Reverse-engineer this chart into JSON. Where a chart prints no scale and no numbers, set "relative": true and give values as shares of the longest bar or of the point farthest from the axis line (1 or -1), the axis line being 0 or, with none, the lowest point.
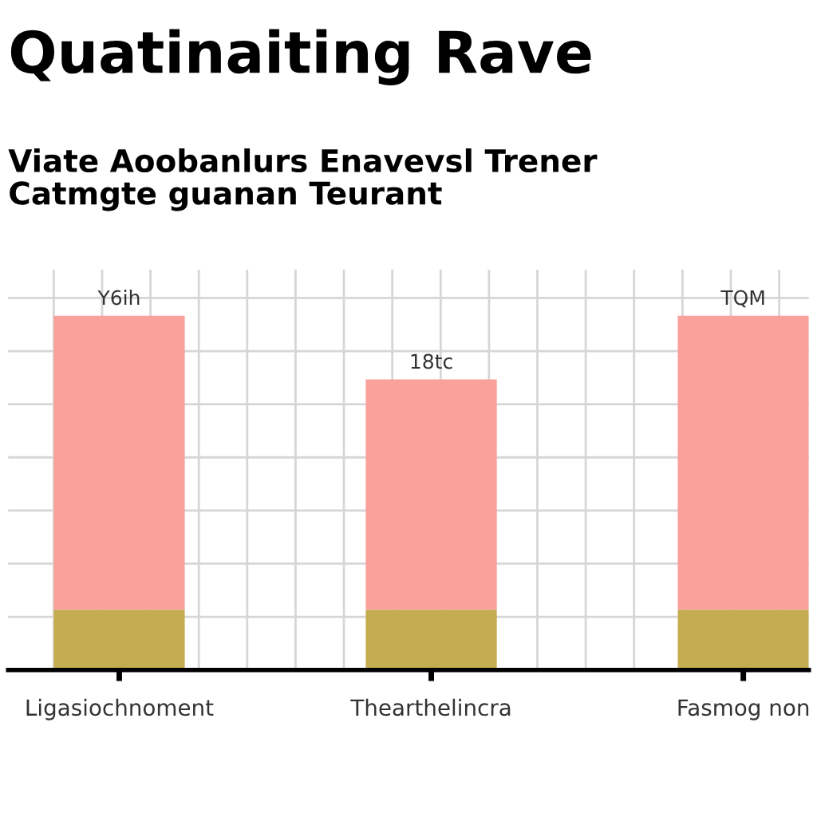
{
  "chart_data": {
    "type": "bar",
    "title": "Quatinaiting Rave",
    "subtitle": "Viate Aoobanlurs Enavevsl Trener\nCatmgte guanan Teurant",
    "categories": [
      "Ligasiochnoment",
      "Thearthelincra",
      "Fasmog non"
    ],
    "relative": true,
    "stacked": true,
    "grid": true,
    "series": [
      {
        "color": "#c4ac50",
        "values": [
          0.17,
          0.17,
          0.17
        ]
      },
      {
        "color": "#f9a19a",
        "values": [
          0.83,
          0.65,
          0.83
        ]
      }
    ],
    "annotations": [
      {
        "text": "Y6ih",
        "x": "Ligasiochnoment",
        "y": 1.0
      },
      {
        "text": "18tc",
        "x": "Thearthelincra",
        "y": 0.82
      },
      {
        "text": "TQM",
        "x": "Fasmog non",
        "y": 1.0
      }
    ]
  }
}
